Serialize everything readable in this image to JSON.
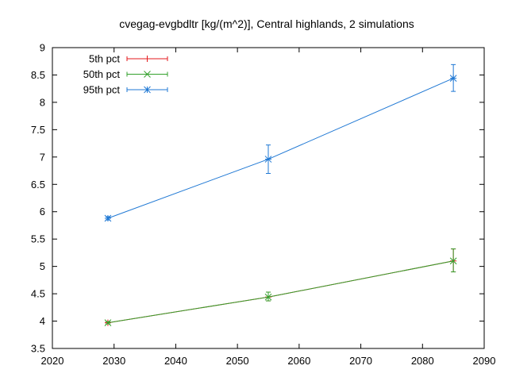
{
  "chart_data": {
    "type": "line",
    "title": "cvegag-evgbdltr [kg/(m^2)], Central highlands, 2 simulations",
    "xlabel": "",
    "ylabel": "",
    "xlim": [
      2020,
      2090
    ],
    "ylim": [
      3.5,
      9
    ],
    "x_ticks": [
      2020,
      2030,
      2040,
      2050,
      2060,
      2070,
      2080,
      2090
    ],
    "y_ticks": [
      3.5,
      4,
      4.5,
      5,
      5.5,
      6,
      6.5,
      7,
      7.5,
      8,
      8.5,
      9
    ],
    "grid": false,
    "legend_position": "top-left",
    "x": [
      2029,
      2055,
      2085
    ],
    "series": [
      {
        "name": "5th pct",
        "color": "#e41a1c",
        "marker": "plus",
        "values": [
          3.97,
          4.44,
          5.1
        ],
        "err_low": [
          3.95,
          4.37,
          4.9
        ],
        "err_high": [
          3.99,
          4.53,
          5.32
        ]
      },
      {
        "name": "50th pct",
        "color": "#33a02c",
        "marker": "cross",
        "values": [
          3.97,
          4.44,
          5.1
        ],
        "err_low": [
          3.95,
          4.37,
          4.9
        ],
        "err_high": [
          3.99,
          4.53,
          5.32
        ]
      },
      {
        "name": "95th pct",
        "color": "#1f78d4",
        "marker": "star",
        "values": [
          5.88,
          6.96,
          8.44
        ],
        "err_low": [
          5.85,
          6.7,
          8.2
        ],
        "err_high": [
          5.91,
          7.22,
          8.69
        ]
      }
    ]
  }
}
